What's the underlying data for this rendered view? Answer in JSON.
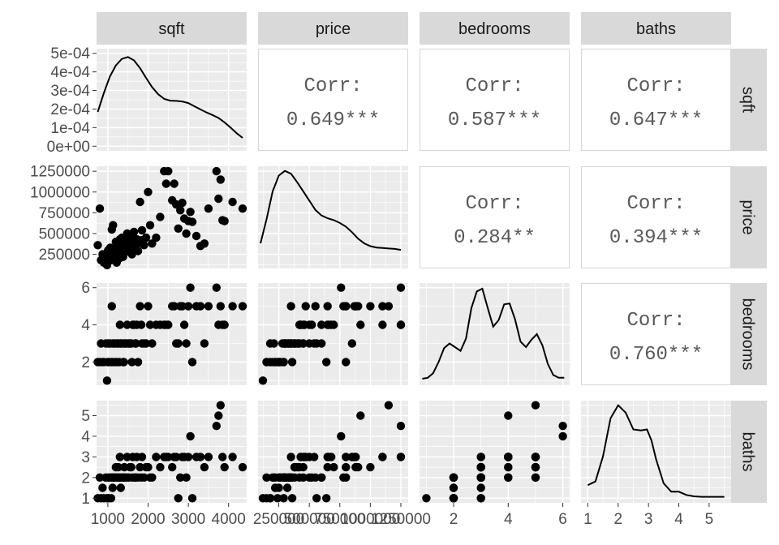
{
  "chart_data": {
    "type": "scatter-matrix",
    "variables": [
      "sqft",
      "price",
      "bedrooms",
      "baths"
    ],
    "colors": {
      "panel": "#ebebeb",
      "grid": "#ffffff",
      "strip": "#d9d9d9",
      "point": "#000000",
      "corr_text": "#595959",
      "border": "#d6d6d6"
    },
    "axes": {
      "sqft": {
        "lim": [
          720,
          4450
        ],
        "ticks": [
          1000,
          2000,
          3000,
          4000
        ],
        "tick_labels": [
          "1000",
          "2000",
          "3000",
          "4000"
        ]
      },
      "price": {
        "lim": [
          80000,
          1310000
        ],
        "ticks": [
          250000,
          500000,
          750000,
          1000000,
          1250000
        ],
        "tick_labels": [
          "250000",
          "500000",
          "750000",
          "1000000",
          "1250000"
        ]
      },
      "bedrooms": {
        "lim": [
          0.75,
          6.25
        ],
        "ticks": [
          2,
          4,
          6
        ],
        "tick_labels": [
          "2",
          "4",
          "6"
        ]
      },
      "baths": {
        "lim": [
          0.775,
          5.725
        ],
        "ticks": [
          1,
          2,
          3,
          4,
          5
        ],
        "tick_labels": [
          "1",
          "2",
          "3",
          "4",
          "5"
        ]
      },
      "density": {
        "lim": [
          -2.5e-05,
          0.000525
        ],
        "ticks": [
          0,
          0.0001,
          0.0002,
          0.0003,
          0.0004,
          0.0005
        ],
        "tick_labels": [
          "0e+00",
          "1e-04",
          "2e-04",
          "3e-04",
          "4e-04",
          "5e-04"
        ]
      }
    },
    "x_tick_labels": {
      "sqft": [
        "1000",
        "2000",
        "3000",
        "4000"
      ],
      "price": [
        "250000",
        "500000",
        "750000",
        "1000000",
        "1250000"
      ],
      "bedrooms": [
        "2",
        "4",
        "6"
      ],
      "baths": [
        "1",
        "2",
        "3",
        "4",
        "5"
      ]
    },
    "correlations": [
      {
        "row": "sqft",
        "col": "price",
        "label": "Corr:",
        "value": "0.649***"
      },
      {
        "row": "sqft",
        "col": "bedrooms",
        "label": "Corr:",
        "value": "0.587***"
      },
      {
        "row": "sqft",
        "col": "baths",
        "label": "Corr:",
        "value": "0.647***"
      },
      {
        "row": "price",
        "col": "bedrooms",
        "label": "Corr:",
        "value": "0.284**"
      },
      {
        "row": "price",
        "col": "baths",
        "label": "Corr:",
        "value": "0.394***"
      },
      {
        "row": "bedrooms",
        "col": "baths",
        "label": "Corr:",
        "value": "0.760***"
      }
    ],
    "densities": {
      "sqft": {
        "x": [
          750,
          900,
          1050,
          1200,
          1350,
          1500,
          1650,
          1800,
          1950,
          2100,
          2250,
          2400,
          2550,
          2700,
          2850,
          3000,
          3150,
          3300,
          3450,
          3600,
          3750,
          3900,
          4050,
          4200,
          4350
        ],
        "y": [
          0.000185,
          0.000285,
          0.000375,
          0.000435,
          0.00047,
          0.00048,
          0.000462,
          0.00042,
          0.000368,
          0.000318,
          0.00028,
          0.000255,
          0.000245,
          0.000244,
          0.000241,
          0.000232,
          0.000215,
          0.000198,
          0.000182,
          0.000168,
          0.000152,
          0.000128,
          0.0001,
          7e-05,
          4.5e-05
        ]
      },
      "price": {
        "x": [
          100000,
          150000,
          200000,
          250000,
          300000,
          350000,
          400000,
          450000,
          500000,
          550000,
          600000,
          650000,
          700000,
          750000,
          800000,
          850000,
          900000,
          950000,
          1000000,
          1050000,
          1100000,
          1150000,
          1200000,
          1250000
        ],
        "y": [
          0.22,
          0.48,
          0.78,
          0.95,
          1.0,
          0.97,
          0.88,
          0.78,
          0.68,
          0.58,
          0.52,
          0.49,
          0.47,
          0.44,
          0.4,
          0.34,
          0.27,
          0.22,
          0.19,
          0.175,
          0.17,
          0.165,
          0.16,
          0.15
        ]
      },
      "bedrooms": {
        "x": [
          0.85,
          1.05,
          1.25,
          1.45,
          1.65,
          1.85,
          2.05,
          2.25,
          2.45,
          2.65,
          2.85,
          3.05,
          3.25,
          3.45,
          3.65,
          3.85,
          4.05,
          4.25,
          4.45,
          4.65,
          4.85,
          5.05,
          5.25,
          5.45,
          5.65,
          5.85,
          6.05
        ],
        "y": [
          0.02,
          0.03,
          0.08,
          0.2,
          0.35,
          0.4,
          0.36,
          0.32,
          0.45,
          0.78,
          0.96,
          0.99,
          0.78,
          0.58,
          0.65,
          0.82,
          0.83,
          0.66,
          0.42,
          0.36,
          0.44,
          0.5,
          0.38,
          0.18,
          0.06,
          0.03,
          0.03
        ]
      },
      "baths": {
        "x": [
          1.0,
          1.25,
          1.5,
          1.75,
          2.0,
          2.25,
          2.5,
          2.75,
          2.95,
          3.1,
          3.25,
          3.5,
          3.75,
          4.0,
          4.25,
          4.5,
          4.75,
          5.0,
          5.25,
          5.5
        ],
        "y": [
          0.14,
          0.18,
          0.45,
          0.86,
          1.0,
          0.92,
          0.74,
          0.73,
          0.74,
          0.62,
          0.42,
          0.16,
          0.07,
          0.07,
          0.035,
          0.02,
          0.015,
          0.015,
          0.015,
          0.015
        ]
      }
    },
    "points": {
      "sqft": [
        750,
        800,
        830,
        870,
        900,
        950,
        980,
        1000,
        1010,
        1020,
        1060,
        1080,
        1100,
        1120,
        1130,
        1150,
        1180,
        1200,
        1220,
        1240,
        1260,
        1280,
        1300,
        1310,
        1320,
        1350,
        1380,
        1400,
        1410,
        1420,
        1450,
        1480,
        1500,
        1520,
        1550,
        1580,
        1600,
        1620,
        1650,
        1680,
        1700,
        1720,
        1750,
        1800,
        1830,
        1850,
        1900,
        1950,
        2000,
        2050,
        2100,
        2200,
        2300,
        2400,
        2450,
        2500,
        2600,
        2650,
        2700,
        2750,
        2800,
        2850,
        2900,
        2950,
        3000,
        3050,
        3100,
        3200,
        3300,
        3400,
        3500,
        3700,
        3750,
        3800,
        3850,
        3900,
        4100,
        4350
      ],
      "price": [
        360000,
        800000,
        180000,
        250000,
        150000,
        210000,
        120000,
        290000,
        300000,
        240000,
        330000,
        180000,
        550000,
        220000,
        600000,
        310000,
        260000,
        400000,
        150000,
        350000,
        380000,
        200000,
        430000,
        280000,
        320000,
        450000,
        220000,
        260000,
        410000,
        330000,
        300000,
        500000,
        290000,
        340000,
        420000,
        380000,
        250000,
        460000,
        520000,
        300000,
        350000,
        430000,
        290000,
        880000,
        420000,
        540000,
        360000,
        450000,
        1000000,
        600000,
        380000,
        450000,
        700000,
        1250000,
        1100000,
        1250000,
        900000,
        1100000,
        850000,
        560000,
        780000,
        870000,
        680000,
        500000,
        650000,
        760000,
        640000,
        470000,
        350000,
        380000,
        800000,
        1250000,
        920000,
        1150000,
        660000,
        650000,
        880000,
        800000
      ],
      "bedrooms": [
        2,
        2,
        3,
        2,
        2,
        3,
        1,
        2,
        3,
        2,
        3,
        2,
        5,
        2,
        3,
        3,
        2,
        3,
        2,
        3,
        3,
        2,
        4,
        3,
        3,
        3,
        2,
        2,
        3,
        3,
        3,
        4,
        3,
        3,
        3,
        3,
        2,
        4,
        4,
        3,
        3,
        4,
        2,
        5,
        4,
        3,
        3,
        3,
        5,
        4,
        3,
        4,
        4,
        4,
        4,
        4,
        5,
        5,
        3,
        3,
        5,
        5,
        4,
        3,
        5,
        6,
        2,
        5,
        5,
        3,
        5,
        6,
        4,
        5,
        4,
        4,
        5,
        5
      ],
      "baths": [
        1,
        2,
        1,
        1.5,
        1,
        2,
        1,
        1,
        2,
        1,
        2,
        1,
        2,
        1.5,
        2,
        2,
        2,
        2.5,
        2,
        2,
        2.5,
        2,
        3,
        2,
        1.5,
        2,
        2,
        2,
        2.5,
        2,
        2,
        3,
        2,
        2,
        2.5,
        2.5,
        2,
        3,
        2,
        2,
        2,
        3,
        2,
        2.5,
        2,
        3,
        2,
        2.5,
        2.5,
        2,
        2,
        3,
        2.5,
        3,
        3,
        3,
        2.5,
        3,
        3,
        1,
        2,
        3,
        3,
        2,
        3,
        4,
        1,
        3,
        3,
        2.5,
        3,
        4.5,
        5,
        5.5,
        3,
        2.5,
        3,
        2.5
      ]
    }
  }
}
